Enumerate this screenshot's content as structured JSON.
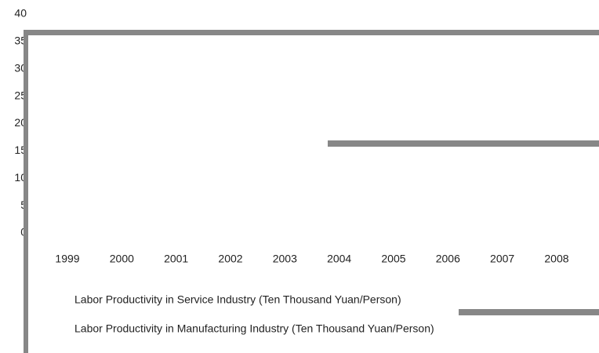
{
  "chart_data": {
    "type": "line",
    "categories": [
      "1999",
      "2000",
      "2001",
      "2002",
      "2003",
      "2004",
      "2005",
      "2006",
      "2007",
      "2008"
    ],
    "series": [
      {
        "name": "Labor Productivity in Service Industry (Ten Thousand Yuan/Person)",
        "values": [
          null,
          null,
          null,
          null,
          null,
          null,
          null,
          null,
          null,
          null
        ]
      },
      {
        "name": "Labor Productivity in Manufacturing Industry (Ten Thousand Yuan/Person)",
        "values": [
          null,
          null,
          null,
          null,
          null,
          null,
          null,
          null,
          null,
          null
        ]
      }
    ],
    "ylim": [
      0,
      40
    ],
    "yticks": [
      0,
      5,
      10,
      15,
      20,
      25,
      30,
      35,
      40
    ]
  }
}
